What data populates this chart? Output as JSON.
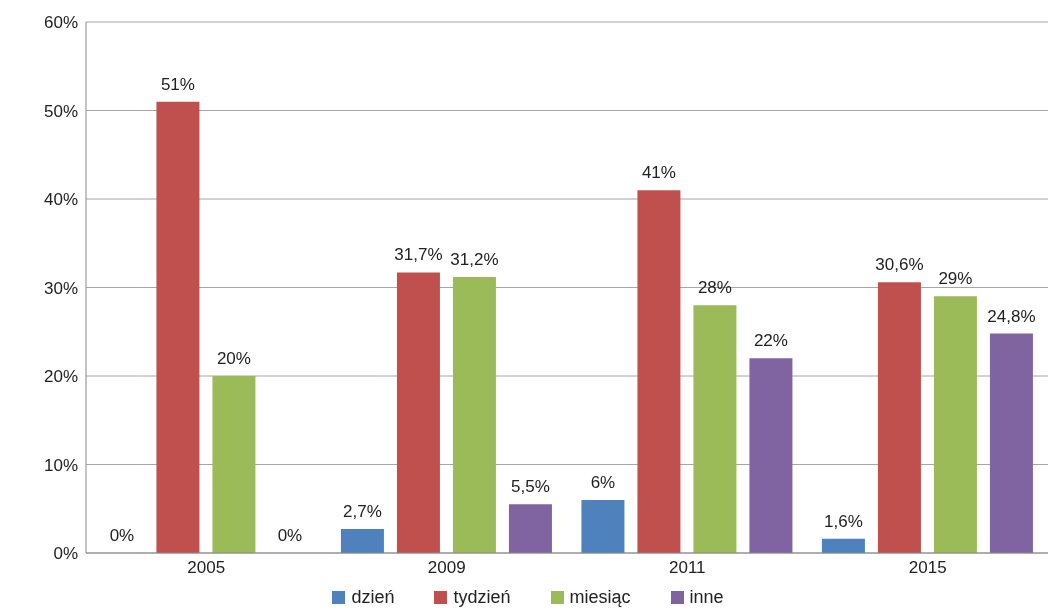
{
  "chart_data": {
    "type": "bar",
    "categories": [
      "2005",
      "2009",
      "2011",
      "2015"
    ],
    "series": [
      {
        "name": "dzień",
        "color": "#4f81bd",
        "values": [
          0,
          2.7,
          6,
          1.6
        ],
        "value_labels": [
          "0%",
          "2,7%",
          "6%",
          "1,6%"
        ]
      },
      {
        "name": "tydzień",
        "color": "#c0504d",
        "values": [
          51,
          31.7,
          41,
          30.6
        ],
        "value_labels": [
          "51%",
          "31,7%",
          "41%",
          "30,6%"
        ]
      },
      {
        "name": "miesiąc",
        "color": "#9bbb59",
        "values": [
          20,
          31.2,
          28,
          29
        ],
        "value_labels": [
          "20%",
          "31,2%",
          "28%",
          "29%"
        ]
      },
      {
        "name": "inne",
        "color": "#8064a2",
        "values": [
          0,
          5.5,
          22,
          24.8
        ],
        "value_labels": [
          "0%",
          "5,5%",
          "22%",
          "24,8%"
        ]
      }
    ],
    "ylim": [
      0,
      60
    ],
    "yticks": [
      {
        "value": 0,
        "label": "0%"
      },
      {
        "value": 10,
        "label": "10%"
      },
      {
        "value": 20,
        "label": "20%"
      },
      {
        "value": 30,
        "label": "30%"
      },
      {
        "value": 40,
        "label": "40%"
      },
      {
        "value": 50,
        "label": "50%"
      },
      {
        "value": 60,
        "label": "60%"
      }
    ],
    "grid": "y",
    "legend": "bottom"
  }
}
